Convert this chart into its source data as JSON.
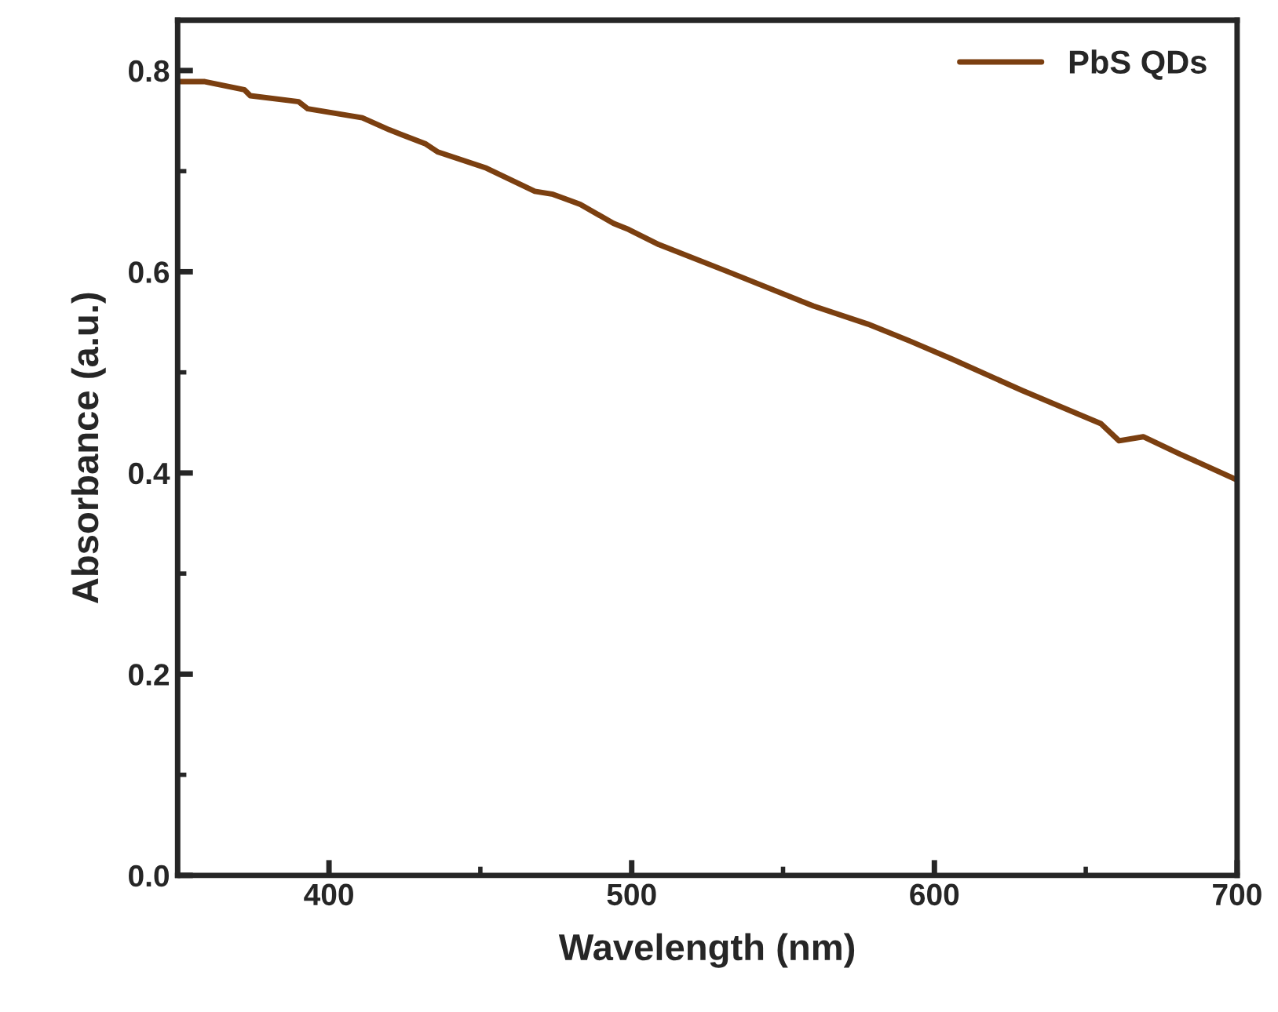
{
  "chart_data": {
    "type": "line",
    "xlabel": "Wavelength (nm)",
    "ylabel": "Absorbance (a.u.)",
    "xlim": [
      350,
      700
    ],
    "ylim": [
      0,
      0.85
    ],
    "xticks": [
      400,
      500,
      600,
      700
    ],
    "yticks": [
      {
        "value": 0,
        "label": "0.0"
      },
      0.2,
      0.4,
      0.6,
      0.8
    ],
    "legend": "top right",
    "grid": false,
    "series": [
      {
        "name": "PbS QDs",
        "color": "#7b3f10",
        "x": [
          350,
          359,
          372,
          374,
          390,
          393,
          411,
          420,
          432,
          436,
          452,
          468,
          474,
          483,
          494,
          499,
          509,
          531,
          560,
          578,
          592,
          606,
          629,
          655,
          661,
          669,
          681,
          700
        ],
        "values": [
          0.789,
          0.789,
          0.781,
          0.775,
          0.769,
          0.762,
          0.753,
          0.741,
          0.727,
          0.719,
          0.703,
          0.68,
          0.677,
          0.667,
          0.648,
          0.642,
          0.627,
          0.601,
          0.566,
          0.548,
          0.531,
          0.513,
          0.482,
          0.449,
          0.432,
          0.436,
          0.419,
          0.393
        ]
      }
    ]
  }
}
